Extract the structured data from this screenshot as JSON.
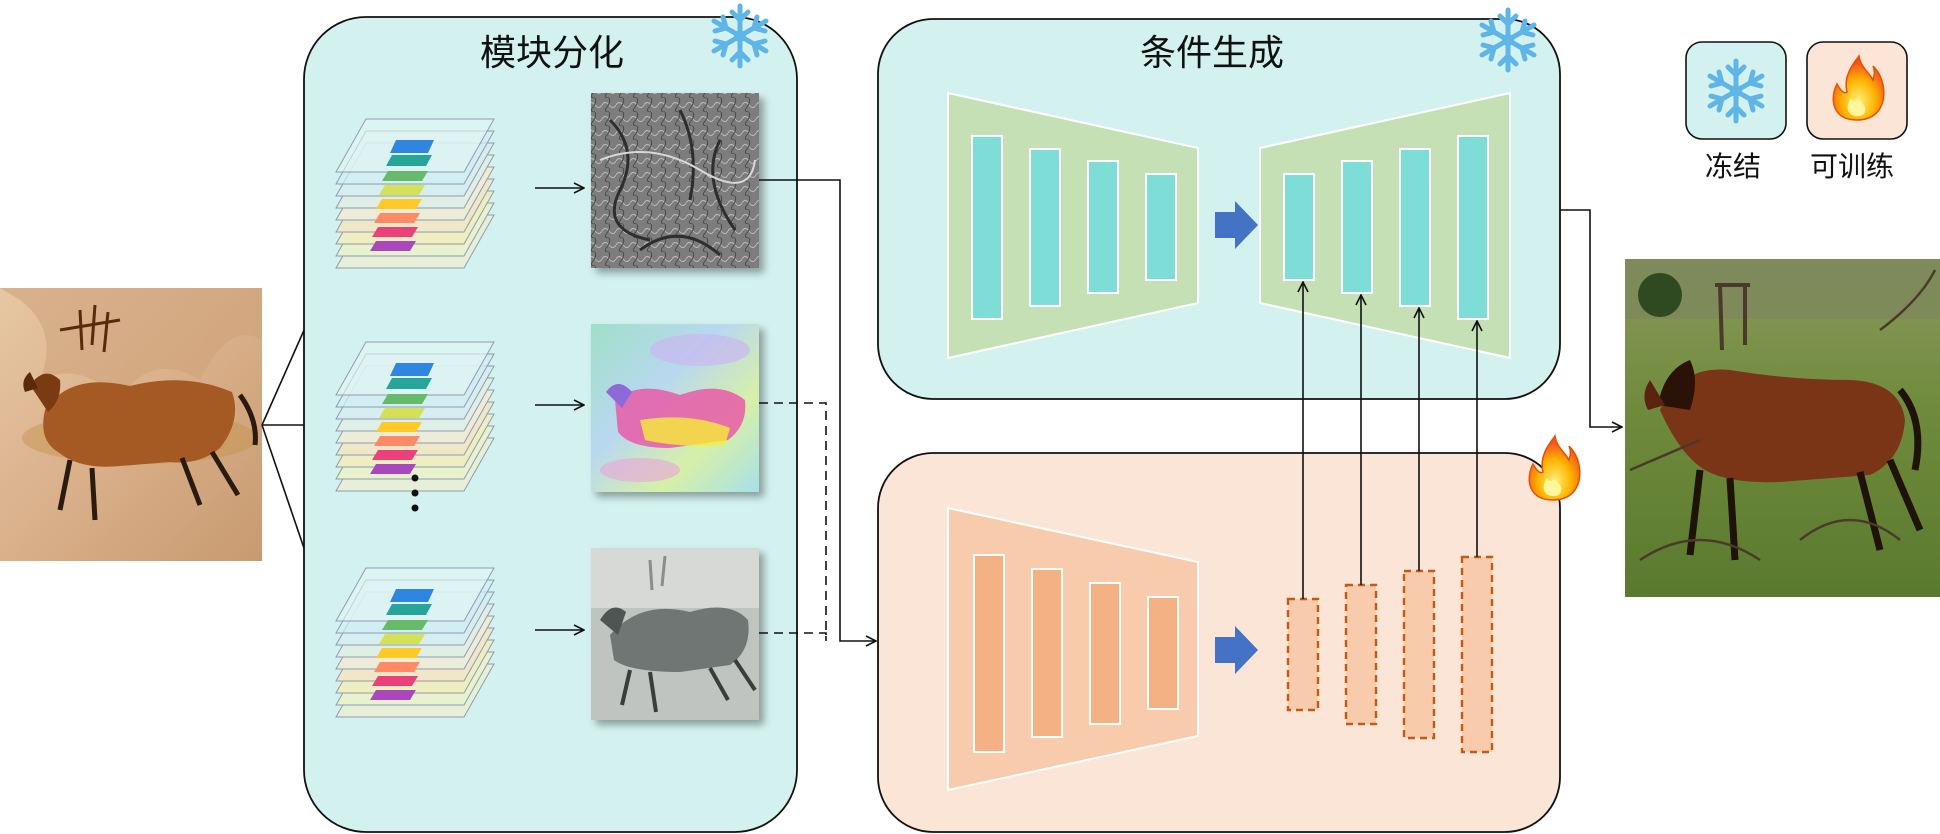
{
  "modules": {
    "decompose": {
      "title": "模块分化",
      "state_icon": "snowflake-icon"
    },
    "generate": {
      "title": "条件生成",
      "state_icon": "snowflake-icon"
    },
    "control": {
      "state_icon": "flame-icon"
    }
  },
  "legend": {
    "frozen": {
      "label": "冻结",
      "icon": "snowflake-icon"
    },
    "trainable": {
      "label": "可训练",
      "icon": "flame-icon"
    }
  },
  "layer_stacks": {
    "ellipsis": "⋮"
  },
  "colors": {
    "module_teal_fill": "#d3f2ef",
    "module_orange_fill": "#fbe5d6",
    "encoder_green": "#c5e0b4",
    "encoder_orange": "#f8cbad",
    "block_teal": "#7fddd7",
    "block_orange": "#f4b183",
    "dashed_orange": "#c55a11",
    "arrow_blue": "#4472c4"
  },
  "images": {
    "input": "cave-painting-horse",
    "output": "generated-photo-horse",
    "feature_maps": [
      "edge-map",
      "color-segmentation-map",
      "grayscale-map"
    ]
  }
}
